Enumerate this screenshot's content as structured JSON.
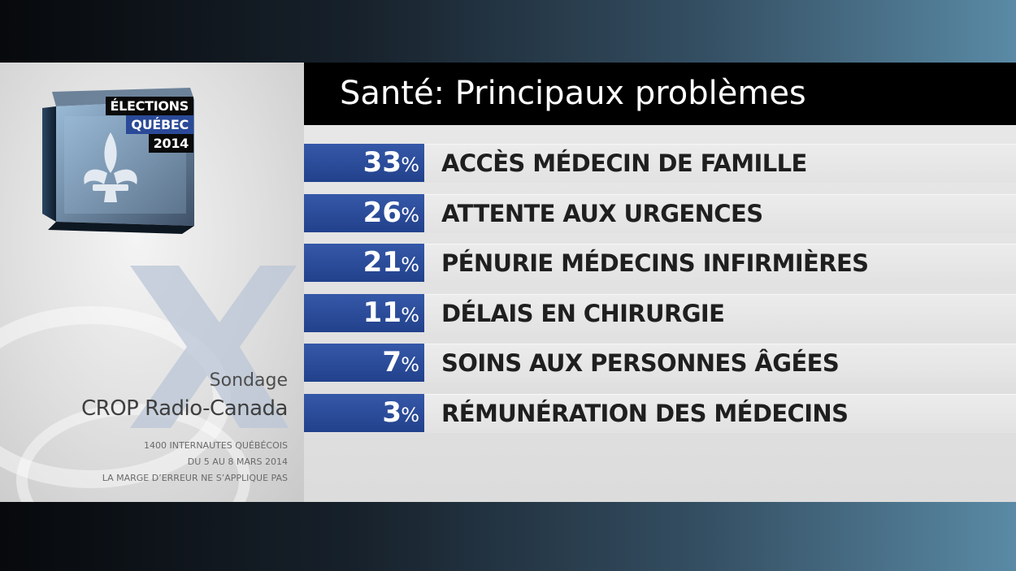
{
  "logo": {
    "line1": "ÉLECTIONS",
    "line2": "QUÉBEC",
    "line3": "2014"
  },
  "source": {
    "sondage": "Sondage",
    "pollster": "CROP Radio-Canada",
    "note1": "1400 INTERNAUTES QUÉBÉCOIS",
    "note2": "DU 5 AU 8 MARS 2014",
    "note3": "LA MARGE D’ERREUR NE S’APPLIQUE PAS"
  },
  "percent_sign": "%",
  "colors": {
    "accent_blue": "#2a4a98",
    "header_black": "#000000",
    "label_text": "#1f1f1f"
  },
  "chart_data": {
    "type": "bar",
    "title": "Santé: Principaux problèmes",
    "categories": [
      "ACCÈS MÉDECIN DE FAMILLE",
      "ATTENTE AUX URGENCES",
      "PÉNURIE MÉDECINS INFIRMIÈRES",
      "DÉLAIS EN CHIRURGIE",
      "SOINS AUX PERSONNES ÂGÉES",
      "RÉMUNÉRATION DES MÉDECINS"
    ],
    "values": [
      33,
      26,
      21,
      11,
      7,
      3
    ],
    "value_labels": [
      "33",
      "26",
      "21",
      "11",
      "7",
      "3"
    ],
    "unit": "%"
  }
}
